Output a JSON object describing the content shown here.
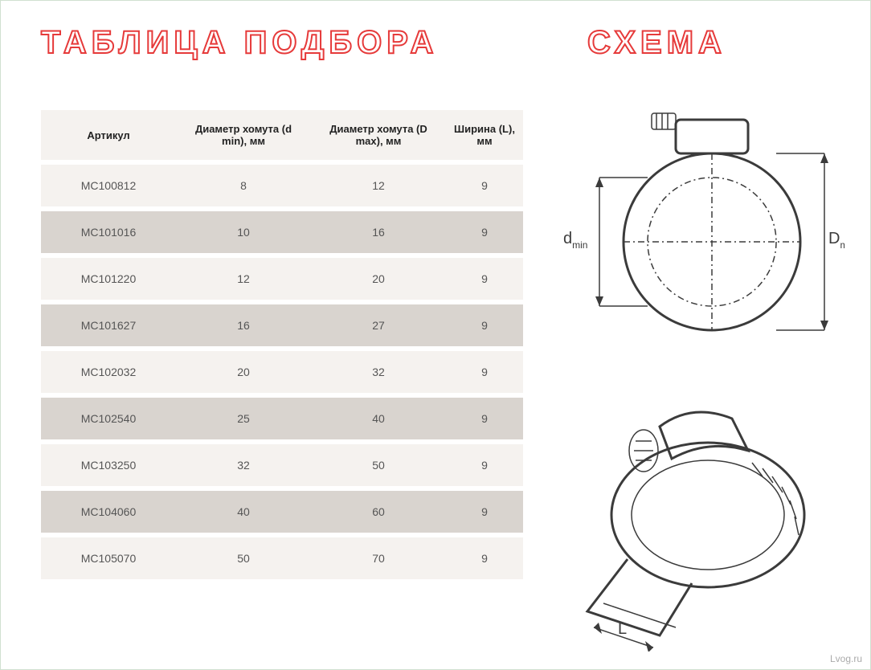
{
  "accent_color": "#e63a3a",
  "title_table": "ТАБЛИЦА ПОДБОРА",
  "title_scheme": "СХЕМА",
  "table": {
    "columns": [
      "Артикул",
      "Диаметр хомута (d min), мм",
      "Диаметр хомута (D max), мм",
      "Ширина (L), мм"
    ],
    "column_widths_pct": [
      28,
      28,
      28,
      16
    ],
    "header_bg": "#f5f2ef",
    "row_bg_light": "#f5f2ef",
    "row_bg_dark": "#d9d4cf",
    "text_color": "#555555",
    "header_text_color": "#222222",
    "header_fontsize": 13,
    "cell_fontsize": 14,
    "rows": [
      [
        "MC100812",
        "8",
        "12",
        "9"
      ],
      [
        "MC101016",
        "10",
        "16",
        "9"
      ],
      [
        "MC101220",
        "12",
        "20",
        "9"
      ],
      [
        "MC101627",
        "16",
        "27",
        "9"
      ],
      [
        "MC102032",
        "20",
        "32",
        "9"
      ],
      [
        "MC102540",
        "25",
        "40",
        "9"
      ],
      [
        "MC103250",
        "32",
        "50",
        "9"
      ],
      [
        "MC104060",
        "40",
        "60",
        "9"
      ],
      [
        "MC105070",
        "50",
        "70",
        "9"
      ]
    ]
  },
  "scheme": {
    "label_dmin": "d",
    "label_dmin_sub": "min",
    "label_dmax": "D",
    "label_dmax_sub": "max",
    "label_L": "L",
    "line_color": "#3b3b3b"
  },
  "watermark": "Lvog.ru"
}
